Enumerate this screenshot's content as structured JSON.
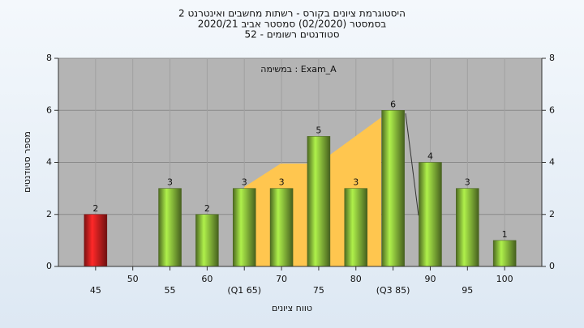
{
  "chart_data": {
    "type": "bar",
    "title": [
      "היסטוגרמת ציונים בקורס - רשתות מחשבים ואינטרנט 2",
      "בסמסטר  (02/2020)  סמסטר אביב 2020/21",
      "סטודנטים רשומים - 52"
    ],
    "annotation": "במשימה : Exam_A",
    "x_label": "טווח ציונים",
    "y_label": "מספר סטודנטים",
    "categories": [
      "45",
      "50",
      "55",
      "60",
      "(Q1 65)",
      "70",
      "75",
      "80",
      "(Q3 85)",
      "90",
      "95",
      "100"
    ],
    "values": [
      2,
      null,
      3,
      2,
      3,
      3,
      5,
      3,
      6,
      4,
      3,
      1
    ],
    "colors": [
      "#e02020",
      null,
      "#8cc03c",
      "#8cc03c",
      "#8cc03c",
      "#8cc03c",
      "#8cc03c",
      "#8cc03c",
      "#8cc03c",
      "#8cc03c",
      "#8cc03c",
      "#8cc03c"
    ],
    "ylim": [
      0,
      8
    ],
    "yticks": [
      0,
      2,
      4,
      6,
      8
    ],
    "grid": true
  }
}
